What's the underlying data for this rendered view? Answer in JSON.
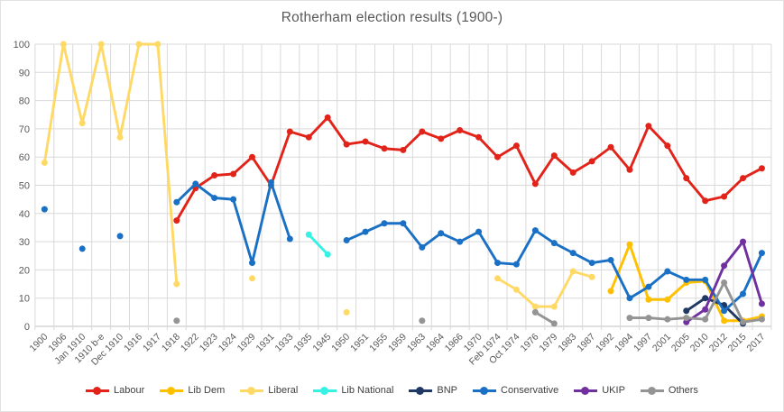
{
  "chart_data": {
    "type": "line",
    "title": "Rotherham election results (1900-)",
    "xlabel": "",
    "ylabel": "",
    "ylim": [
      0,
      100
    ],
    "y_step": 10,
    "grid": true,
    "legend_position": "bottom",
    "axis_text_color": "#595959",
    "grid_color": "#d9d9d9",
    "categories": [
      "1900",
      "1906",
      "Jan 1910",
      "1910 b-e",
      "Dec 1910",
      "1916",
      "1917",
      "1918",
      "1922",
      "1923",
      "1924",
      "1929",
      "1931",
      "1933",
      "1935",
      "1945",
      "1950",
      "1951",
      "1955",
      "1959",
      "1963",
      "1964",
      "1966",
      "1970",
      "Feb 1974",
      "Oct 1974",
      "1976",
      "1979",
      "1983",
      "1987",
      "1992",
      "1994",
      "1997",
      "2001",
      "2005",
      "2010",
      "2012",
      "2015",
      "2017"
    ],
    "series": [
      {
        "name": "Labour",
        "color": "#e2231a",
        "values": [
          null,
          null,
          null,
          null,
          null,
          null,
          null,
          37.5,
          49,
          53.5,
          54,
          60,
          50,
          69,
          67,
          74,
          64.5,
          65.5,
          63,
          62.5,
          69,
          66.5,
          69.5,
          67,
          60,
          64,
          50.5,
          60.5,
          54.5,
          58.5,
          63.5,
          55.5,
          71,
          64,
          52.5,
          44.5,
          46,
          52.5,
          56
        ]
      },
      {
        "name": "Lib Dem",
        "color": "#ffc000",
        "values": [
          null,
          null,
          null,
          null,
          null,
          null,
          null,
          null,
          null,
          null,
          null,
          null,
          null,
          null,
          null,
          null,
          null,
          null,
          null,
          null,
          null,
          null,
          null,
          null,
          null,
          null,
          null,
          null,
          null,
          null,
          12.5,
          29,
          9.5,
          9.5,
          15.5,
          16,
          2,
          2,
          3.5
        ]
      },
      {
        "name": "Liberal",
        "color": "#ffd966",
        "values": [
          58,
          100,
          72,
          100,
          67,
          100,
          100,
          15,
          null,
          null,
          null,
          17,
          null,
          null,
          null,
          null,
          5,
          null,
          null,
          null,
          null,
          null,
          null,
          null,
          17,
          13,
          7,
          7,
          19.5,
          17.5,
          null,
          null,
          null,
          null,
          null,
          null,
          null,
          null,
          null
        ]
      },
      {
        "name": "Lib National",
        "color": "#36f1e4",
        "values": [
          null,
          null,
          null,
          null,
          null,
          null,
          null,
          null,
          null,
          null,
          null,
          null,
          null,
          null,
          32.5,
          25.5,
          null,
          null,
          null,
          null,
          null,
          null,
          null,
          null,
          null,
          null,
          null,
          null,
          null,
          null,
          null,
          null,
          null,
          null,
          null,
          null,
          null,
          null,
          null
        ]
      },
      {
        "name": "BNP",
        "color": "#1f3864",
        "values": [
          null,
          null,
          null,
          null,
          null,
          null,
          null,
          null,
          null,
          null,
          null,
          null,
          null,
          null,
          null,
          null,
          null,
          null,
          null,
          null,
          null,
          null,
          null,
          null,
          null,
          null,
          null,
          null,
          null,
          null,
          null,
          null,
          null,
          null,
          5.5,
          10,
          7.5,
          1,
          null
        ]
      },
      {
        "name": "Conservative",
        "color": "#1a70c4",
        "values": [
          41.5,
          null,
          27.5,
          null,
          32,
          null,
          null,
          44,
          50.5,
          45.5,
          45,
          22.5,
          51,
          31,
          null,
          null,
          30.5,
          33.5,
          36.5,
          36.5,
          28,
          33,
          30,
          33.5,
          22.5,
          22,
          34,
          29.5,
          26,
          22.5,
          23.5,
          10,
          14,
          19.5,
          16.5,
          16.5,
          5.5,
          11.5,
          26
        ]
      },
      {
        "name": "UKIP",
        "color": "#7030a0",
        "values": [
          null,
          null,
          null,
          null,
          null,
          null,
          null,
          null,
          null,
          null,
          null,
          null,
          null,
          null,
          null,
          null,
          null,
          null,
          null,
          null,
          null,
          null,
          null,
          null,
          null,
          null,
          null,
          null,
          null,
          null,
          null,
          null,
          null,
          null,
          1.5,
          6,
          21.5,
          30,
          8
        ]
      },
      {
        "name": "Others",
        "color": "#949494",
        "values": [
          null,
          null,
          null,
          null,
          null,
          null,
          null,
          2,
          null,
          null,
          null,
          null,
          null,
          null,
          null,
          null,
          null,
          null,
          null,
          null,
          2,
          null,
          null,
          null,
          null,
          null,
          5,
          1,
          null,
          null,
          null,
          3,
          3,
          2.5,
          3,
          2.5,
          15.5,
          1.5,
          2.5
        ]
      }
    ]
  }
}
